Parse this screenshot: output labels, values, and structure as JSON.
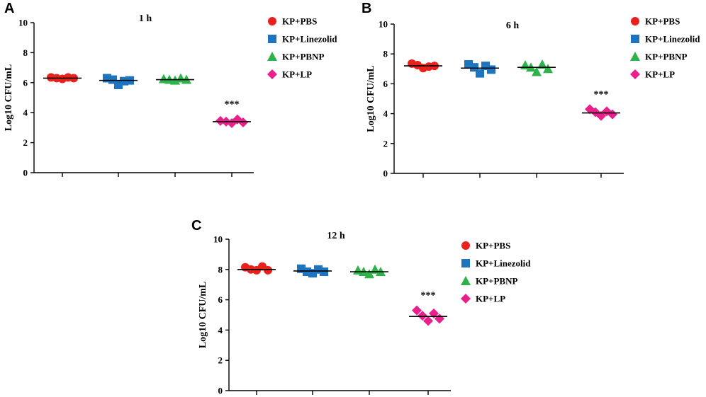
{
  "chart_data": [
    {
      "panel": "A",
      "type": "scatter",
      "title": "1 h",
      "ylabel": "Log10 CFU/mL",
      "ylim": [
        0,
        10
      ],
      "yticks": [
        "0",
        "2",
        "4",
        "6",
        "8",
        "10"
      ],
      "legend": "top-right",
      "groups": [
        {
          "name": "KP+PBS",
          "color": "#e8211c",
          "marker": "circle",
          "mean": 6.3,
          "values": [
            6.35,
            6.3,
            6.25,
            6.35,
            6.3
          ],
          "annotation": ""
        },
        {
          "name": "KP+Linezolid",
          "color": "#1f74bf",
          "marker": "square",
          "mean": 6.15,
          "values": [
            6.3,
            6.2,
            5.85,
            6.1,
            6.15
          ],
          "annotation": ""
        },
        {
          "name": "KP+PBNP",
          "color": "#2db34a",
          "marker": "triangle",
          "mean": 6.2,
          "values": [
            6.25,
            6.2,
            6.15,
            6.3,
            6.2
          ],
          "annotation": ""
        },
        {
          "name": "KP+LP",
          "color": "#ea1f8c",
          "marker": "diamond",
          "mean": 3.4,
          "values": [
            3.45,
            3.4,
            3.3,
            3.55,
            3.35
          ],
          "annotation": "***"
        }
      ]
    },
    {
      "panel": "B",
      "type": "scatter",
      "title": "6 h",
      "ylabel": "Log10 CFU/mL",
      "ylim": [
        0,
        10
      ],
      "yticks": [
        "0",
        "2",
        "4",
        "6",
        "8",
        "10"
      ],
      "legend": "top-right",
      "groups": [
        {
          "name": "KP+PBS",
          "color": "#e8211c",
          "marker": "circle",
          "mean": 7.2,
          "values": [
            7.35,
            7.25,
            7.05,
            7.15,
            7.2
          ],
          "annotation": ""
        },
        {
          "name": "KP+Linezolid",
          "color": "#1f74bf",
          "marker": "square",
          "mean": 7.05,
          "values": [
            7.3,
            7.1,
            6.7,
            7.2,
            6.95
          ],
          "annotation": ""
        },
        {
          "name": "KP+PBNP",
          "color": "#2db34a",
          "marker": "triangle",
          "mean": 7.1,
          "values": [
            7.25,
            7.1,
            6.8,
            7.3,
            7.0
          ],
          "annotation": ""
        },
        {
          "name": "KP+LP",
          "color": "#ea1f8c",
          "marker": "diamond",
          "mean": 4.05,
          "values": [
            4.3,
            4.1,
            3.85,
            4.15,
            3.95
          ],
          "annotation": "***"
        }
      ]
    },
    {
      "panel": "C",
      "type": "scatter",
      "title": "12 h",
      "ylabel": "Log10 CFU/mL",
      "ylim": [
        0,
        10
      ],
      "yticks": [
        "0",
        "2",
        "4",
        "6",
        "8",
        "10"
      ],
      "legend": "top-right",
      "groups": [
        {
          "name": "KP+PBS",
          "color": "#e8211c",
          "marker": "circle",
          "mean": 8.0,
          "values": [
            8.15,
            8.0,
            7.95,
            8.2,
            7.95
          ],
          "annotation": ""
        },
        {
          "name": "KP+Linezolid",
          "color": "#1f74bf",
          "marker": "square",
          "mean": 7.9,
          "values": [
            8.05,
            7.85,
            7.75,
            8.0,
            7.85
          ],
          "annotation": ""
        },
        {
          "name": "KP+PBNP",
          "color": "#2db34a",
          "marker": "triangle",
          "mean": 7.85,
          "values": [
            7.95,
            7.85,
            7.7,
            8.0,
            7.85
          ],
          "annotation": ""
        },
        {
          "name": "KP+LP",
          "color": "#ea1f8c",
          "marker": "diamond",
          "mean": 4.9,
          "values": [
            5.3,
            4.95,
            4.6,
            5.1,
            4.75
          ],
          "annotation": "***"
        }
      ]
    }
  ]
}
